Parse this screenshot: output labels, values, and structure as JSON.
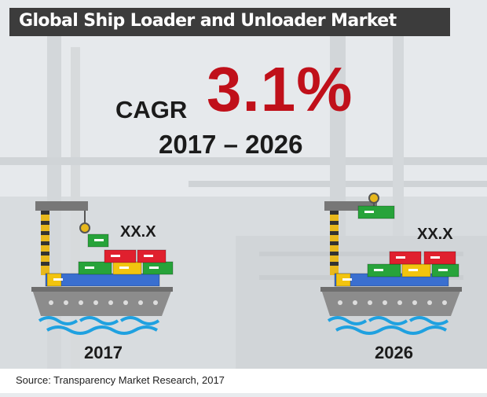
{
  "title": "Global Ship Loader and Unloader Market",
  "cagr": {
    "label": "CAGR",
    "value": "3.1%",
    "period": "2017 – 2026"
  },
  "chart_data": {
    "type": "bar",
    "categories": [
      "2017",
      "2026"
    ],
    "value_labels": [
      "XX.X",
      "XX.X"
    ],
    "value_note": "values not disclosed; 2026 bar drawn taller than 2017",
    "cagr_percent": 3.1
  },
  "source": "Source: Transparency Market Research, 2017",
  "colors": {
    "title_bar": "#3c3c3c",
    "cagr_value": "#c0101a",
    "container_red": "#e0202e",
    "container_green": "#27a33a",
    "container_yellow": "#f2c40f",
    "container_blue": "#2a86d8",
    "hull": "#8c8c8c",
    "water": "#1fa1e0"
  }
}
